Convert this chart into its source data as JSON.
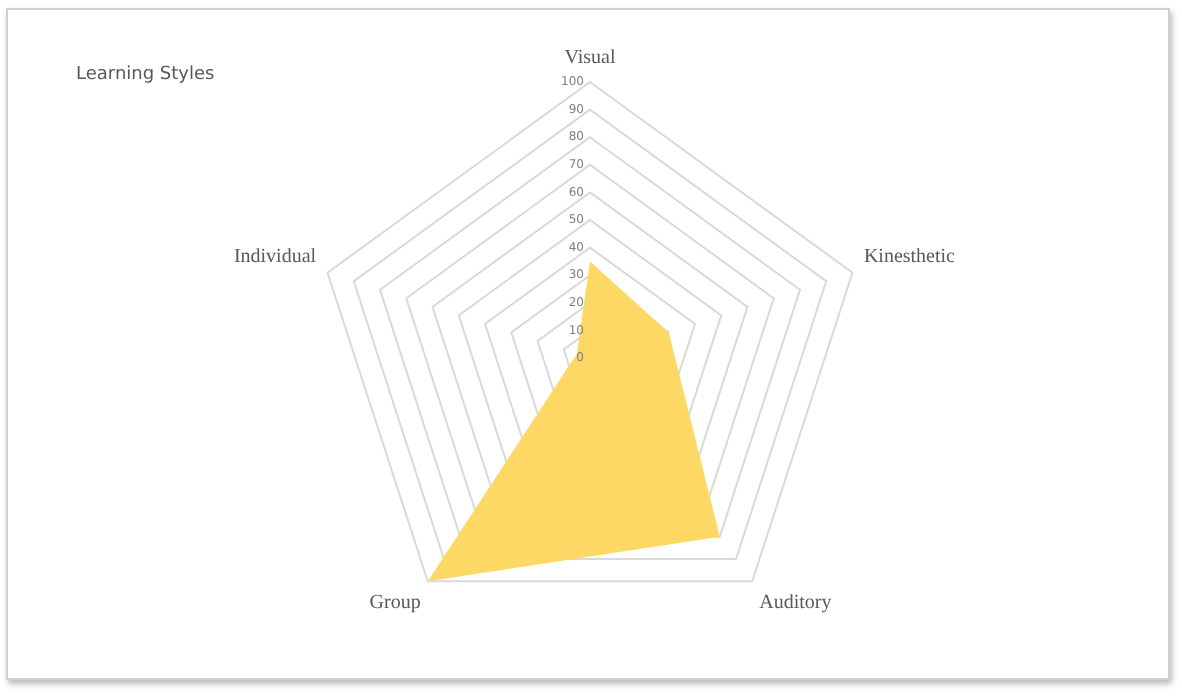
{
  "chart_data": {
    "type": "radar",
    "title": "Learning Styles",
    "categories": [
      "Visual",
      "Kinesthetic",
      "Auditory",
      "Group",
      "Individual"
    ],
    "series": [
      {
        "color": "#fdd865",
        "values": [
          35,
          30,
          80,
          100,
          5
        ]
      }
    ],
    "ylim": [
      0,
      100
    ],
    "yticks": [
      0,
      10,
      20,
      30,
      40,
      50,
      60,
      70,
      80,
      90,
      100
    ],
    "grid": true,
    "legend": false,
    "marker": "none"
  }
}
